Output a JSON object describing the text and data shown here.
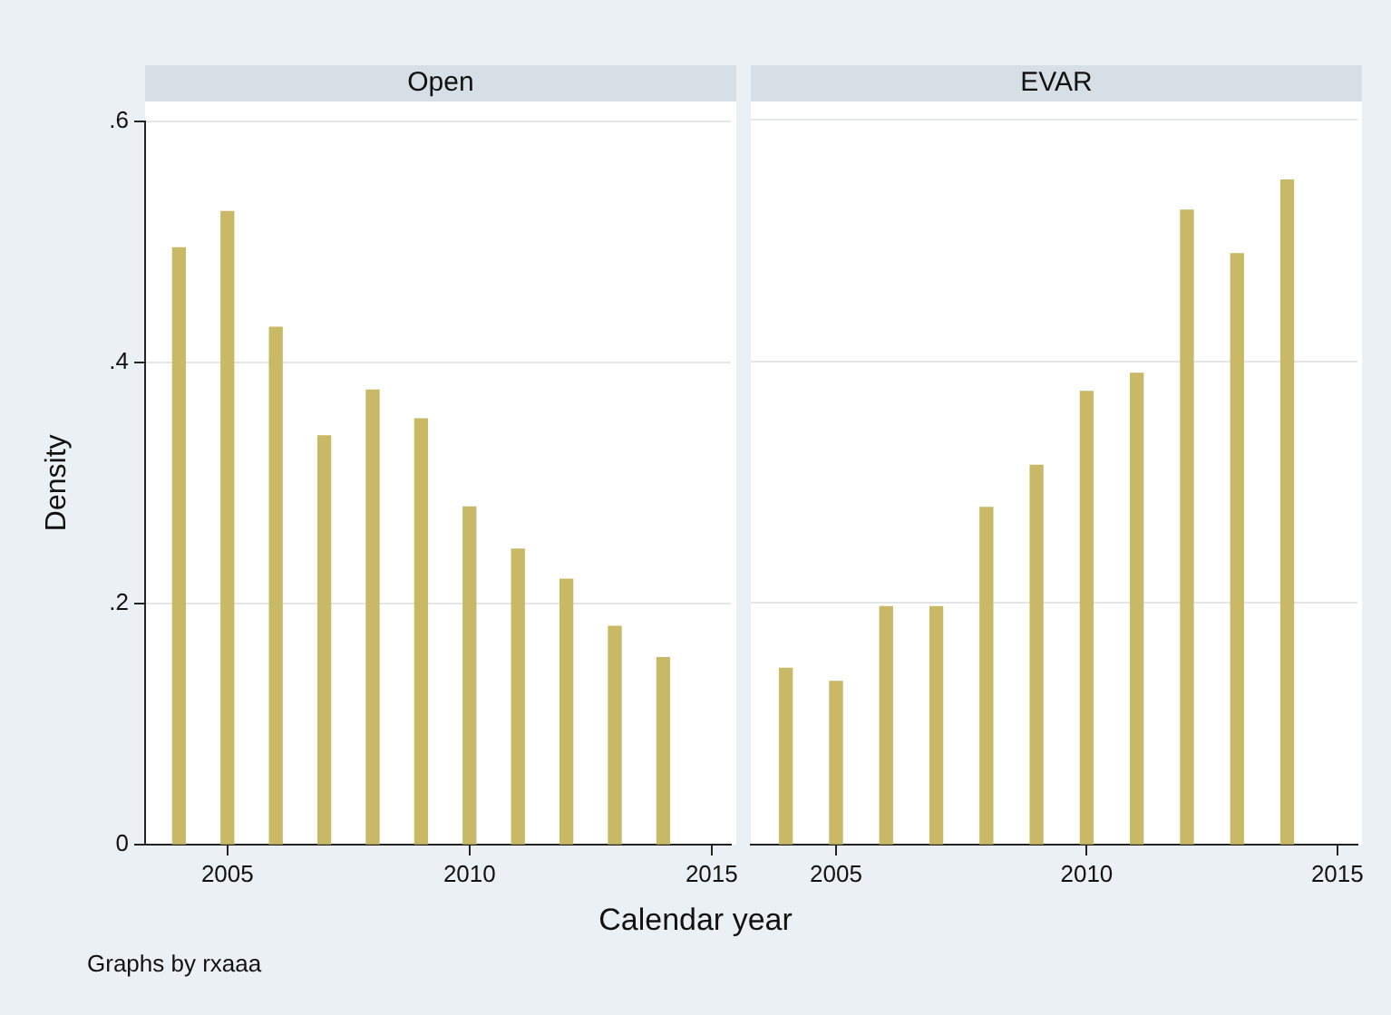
{
  "chart_data": [
    {
      "type": "bar",
      "title": "Open",
      "xlabel": "Calendar year",
      "ylabel": "Density",
      "annotations": [
        "Graphs by rxaaa"
      ],
      "x": [
        2004,
        2005,
        2006,
        2007,
        2008,
        2009,
        2010,
        2011,
        2012,
        2013,
        2014
      ],
      "values": [
        0.495,
        0.525,
        0.429,
        0.339,
        0.377,
        0.353,
        0.28,
        0.245,
        0.22,
        0.181,
        0.155
      ],
      "color": "#c9b865",
      "xlim": [
        2003.3,
        2015.4
      ],
      "xticks": [
        2005,
        2010,
        2015
      ],
      "ylim": [
        0,
        0.6
      ],
      "yticks": [
        0,
        {
          "value": 0.2,
          "label": ".2"
        },
        {
          "value": 0.4,
          "label": ".4"
        },
        {
          "value": 0.6,
          "label": ".6"
        }
      ],
      "grid": "y"
    },
    {
      "type": "bar",
      "title": "EVAR",
      "x": [
        2004,
        2005,
        2006,
        2007,
        2008,
        2009,
        2010,
        2011,
        2012,
        2013,
        2014
      ],
      "values": [
        0.146,
        0.135,
        0.197,
        0.197,
        0.279,
        0.314,
        0.375,
        0.39,
        0.525,
        0.489,
        0.55
      ],
      "color": "#c9b865",
      "xlim": [
        2003.3,
        2015.4
      ],
      "xticks": [
        2005,
        2010,
        2015
      ],
      "ylim": [
        0,
        0.6
      ],
      "yticks": [
        0,
        0.2,
        0.4,
        0.6
      ],
      "grid": "y",
      "tick_labels": "x"
    }
  ]
}
